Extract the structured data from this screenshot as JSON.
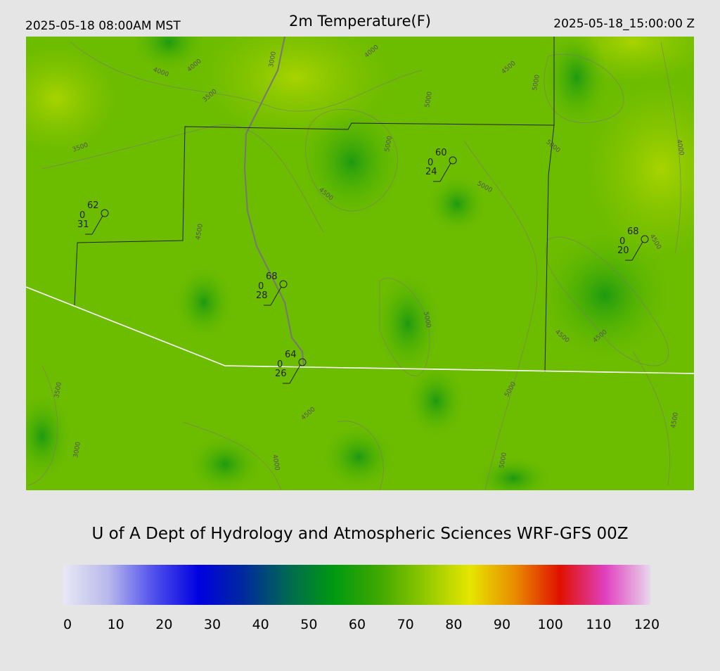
{
  "header": {
    "left": "2025-05-18 08:00AM MST",
    "title": "2m Temperature(F)",
    "right": "2025-05-18_15:00:00 Z"
  },
  "stations": [
    {
      "temp": 62,
      "dew": 0,
      "wind": 31
    },
    {
      "temp": 60,
      "dew": 0,
      "wind": 24
    },
    {
      "temp": 68,
      "dew": 0,
      "wind": 20
    },
    {
      "temp": 68,
      "dew": 0,
      "wind": 28
    },
    {
      "temp": 64,
      "dew": 0,
      "wind": 26
    }
  ],
  "contour_labels": [
    "4000",
    "4000",
    "3500",
    "3000",
    "4000",
    "4500",
    "5000",
    "3500",
    "5000",
    "5000",
    "4000",
    "4500",
    "5000",
    "4500",
    "5000",
    "4500",
    "5000",
    "3500",
    "4500",
    "4500",
    "3000",
    "4500",
    "4000",
    "5000",
    "5000",
    "4500"
  ],
  "credit": "U of A Dept of Hydrology and Atmospheric Sciences WRF-GFS 00Z",
  "colorbar": {
    "range": [
      0,
      120
    ],
    "ticks": [
      0,
      10,
      20,
      30,
      40,
      50,
      60,
      70,
      80,
      90,
      100,
      110,
      120
    ],
    "colors": [
      "#e8e8f4",
      "#b8b8ec",
      "#5050ec",
      "#0000e0",
      "#002a9c",
      "#006a50",
      "#009a10",
      "#40a800",
      "#90c800",
      "#e6e600",
      "#e88c00",
      "#e01000",
      "#e040c0",
      "#e8d8ec"
    ]
  }
}
